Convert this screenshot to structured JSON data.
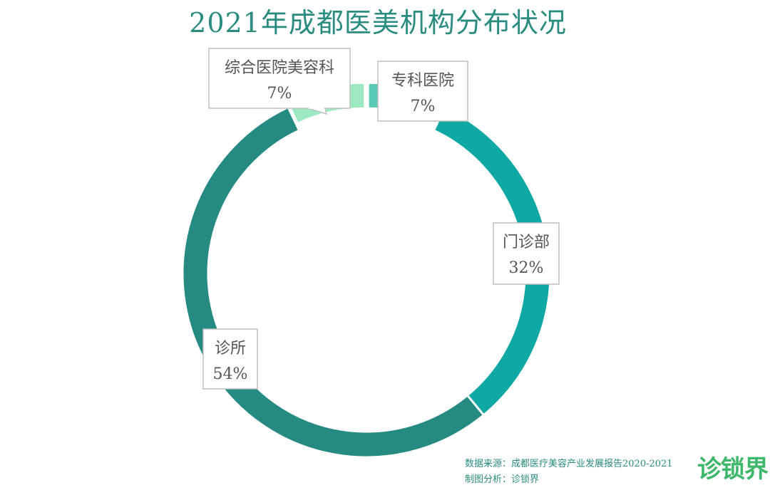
{
  "chart_data": {
    "type": "pie",
    "title": "2021年成都医美机构分布状况",
    "categories": [
      "专科医院",
      "门诊部",
      "诊所",
      "综合医院美容科"
    ],
    "values": [
      7,
      32,
      54,
      7
    ],
    "value_labels": [
      "7%",
      "32%",
      "54%",
      "7%"
    ],
    "colors": [
      "#5ac8b4",
      "#0fa8a4",
      "#248a82",
      "#9ce8c0"
    ],
    "style": "donut",
    "legend": "none"
  },
  "source": {
    "line1": "数据来源：成都医疗美容产业发展报告2020-2021",
    "line2": "制图分析：诊锁界"
  },
  "brand": {
    "logo_text": "诊锁界"
  }
}
